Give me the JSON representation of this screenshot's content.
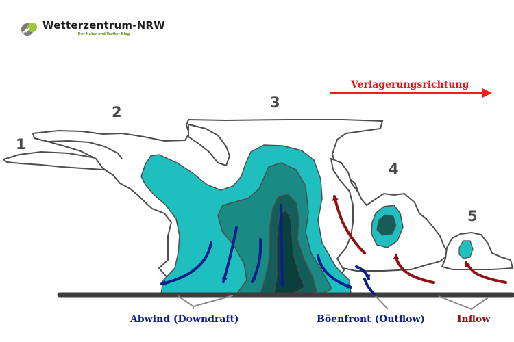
{
  "brand": {
    "title": "Wetterzentrum-NRW",
    "subtitle": "Der Natur und Wetter Blog"
  },
  "direction_label": "Verlagerungsrichtung",
  "stages": [
    "1",
    "2",
    "3",
    "4",
    "5"
  ],
  "labels": {
    "downdraft": "Abwind (Downdraft)",
    "outflow": "Böenfront (Outflow)",
    "inflow": "Inflow"
  },
  "colors": {
    "cloud_outline": "#4d4d4d",
    "core_light": "#1fbfbf",
    "core_mid": "#1a8a84",
    "core_dark": "#135e5a",
    "core_darkest": "#0b3f3c",
    "downdraft_arrow": "#0d1f8c",
    "inflow_arrow": "#8e1216",
    "direction_arrow": "#ff1a1a",
    "ground": "#3d3d3d"
  },
  "icons": [
    "logo-icon",
    "direction-arrow-icon"
  ]
}
